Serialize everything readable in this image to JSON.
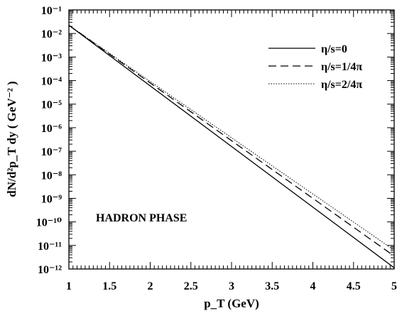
{
  "chart_data": {
    "type": "line",
    "title": "",
    "xlabel": "p_T (GeV)",
    "ylabel": "dN/d²p_T dy ( GeV⁻² )",
    "xlim": [
      1,
      5
    ],
    "ylim_exp": [
      -12,
      -1
    ],
    "log_y": true,
    "grid": false,
    "legend_position": "top-right",
    "x_ticks": [
      "1",
      "1.5",
      "2",
      "2.5",
      "3",
      "3.5",
      "4",
      "4.5",
      "5"
    ],
    "y_ticks": [
      "10⁻¹²",
      "10⁻¹¹",
      "10⁻¹⁰",
      "10⁻⁹",
      "10⁻⁸",
      "10⁻⁷",
      "10⁻⁶",
      "10⁻⁵",
      "10⁻⁴",
      "10⁻³",
      "10⁻²",
      "10⁻¹"
    ],
    "annotation": "HADRON PHASE",
    "series": [
      {
        "name": "η/s=0",
        "dash": "solid",
        "x": [
          1,
          5
        ],
        "y_log10": [
          -1.65,
          -11.95
        ]
      },
      {
        "name": "η/s=1/4π",
        "dash": "dashed",
        "x": [
          1,
          5
        ],
        "y_log10": [
          -1.65,
          -11.45
        ]
      },
      {
        "name": "η/s=2/4π",
        "dash": "dotted",
        "x": [
          1,
          5
        ],
        "y_log10": [
          -1.65,
          -11.2
        ]
      }
    ]
  }
}
